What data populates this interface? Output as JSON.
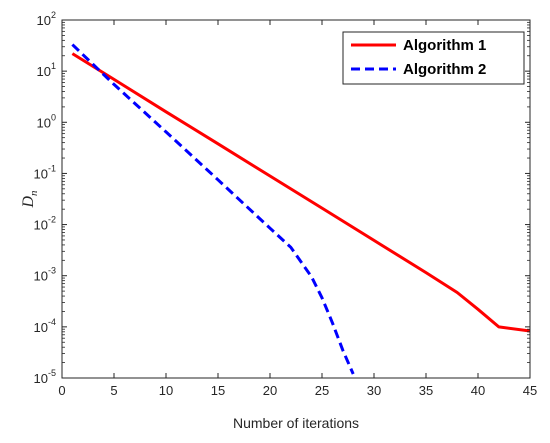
{
  "chart_data": {
    "type": "line",
    "xlabel": "Number of iterations",
    "ylabel": "D",
    "ylabel_subscript": "n",
    "xlim": [
      0,
      45
    ],
    "ylim_exp": [
      -5,
      2
    ],
    "y_scale": "log",
    "x_ticks": [
      "0",
      "5",
      "10",
      "15",
      "20",
      "25",
      "30",
      "35",
      "40",
      "45"
    ],
    "y_tick_base": "10",
    "y_tick_exponents": [
      "2",
      "1",
      "0",
      "-1",
      "-2",
      "-3",
      "-4",
      "-5"
    ],
    "legend_position": "top-right",
    "grid": false,
    "series": [
      {
        "name": "Algorithm 1",
        "color": "#ff0000",
        "style": "solid",
        "x": [
          1,
          5,
          10,
          15,
          20,
          25,
          30,
          35,
          38,
          40,
          42,
          45
        ],
        "y": [
          22,
          6.9,
          1.6,
          0.38,
          0.089,
          0.021,
          0.0049,
          0.00115,
          0.00047,
          0.00022,
          0.0001,
          8.3e-05
        ]
      },
      {
        "name": "Algorithm 2",
        "color": "#0000ff",
        "style": "dashed",
        "x": [
          1,
          5,
          10,
          15,
          20,
          22,
          24,
          25,
          26,
          27,
          28
        ],
        "y": [
          33,
          5.5,
          0.65,
          0.075,
          0.0085,
          0.0036,
          0.00095,
          0.00037,
          0.00012,
          3.5e-05,
          1.2e-05
        ]
      }
    ]
  }
}
